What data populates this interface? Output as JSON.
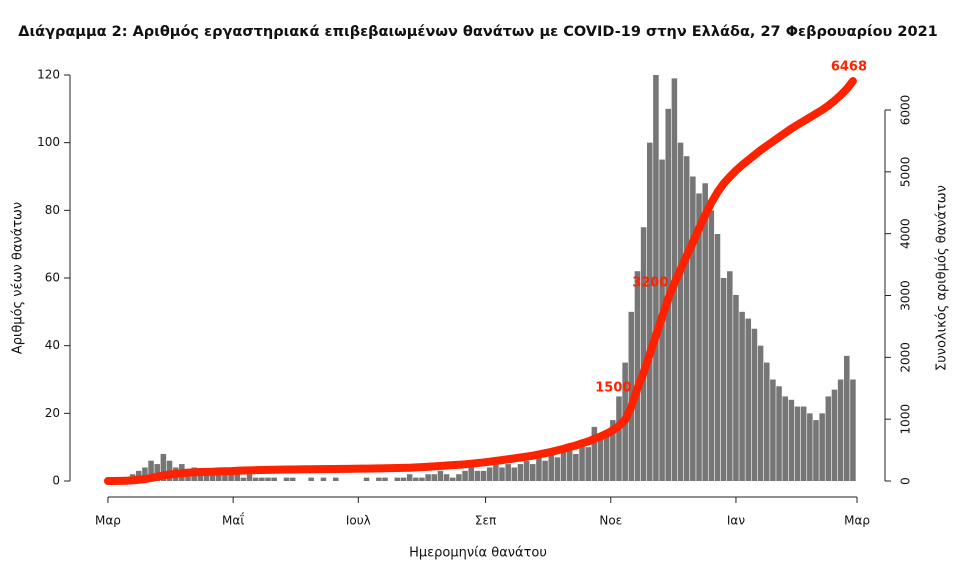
{
  "chart_data": {
    "type": "bar",
    "title": "Διάγραμμα 2: Αριθμός εργαστηριακά επιβεβαιωμένων θανάτων με COVID-19 στην Ελλάδα, 27 Φεβρουαρίου 2021",
    "x_label": "Ημερομηνία θανάτου",
    "y_label": "Αριθμός νέων θανάτων",
    "y2_label": "Συνολικός αριθμός θανάτων",
    "x": [
      0,
      3,
      6,
      9,
      12,
      15,
      18,
      21,
      24,
      27,
      30,
      33,
      36,
      39,
      42,
      45,
      48,
      51,
      54,
      57,
      60,
      63,
      66,
      69,
      72,
      75,
      78,
      81,
      84,
      87,
      90,
      93,
      96,
      99,
      102,
      105,
      108,
      111,
      114,
      117,
      120,
      123,
      126,
      129,
      132,
      135,
      138,
      141,
      144,
      147,
      150,
      153,
      156,
      159,
      162,
      165,
      168,
      171,
      174,
      177,
      180,
      183,
      186,
      189,
      192,
      195,
      198,
      201,
      204,
      207,
      210,
      213,
      216,
      219,
      222,
      225,
      228,
      231,
      234,
      237,
      240,
      243,
      246,
      249,
      252,
      255,
      258,
      261,
      264,
      267,
      270,
      273,
      276,
      279,
      282,
      285,
      288,
      291,
      294,
      297,
      300,
      303,
      306,
      309,
      312,
      315,
      318,
      321,
      324,
      327,
      330,
      333,
      336,
      339,
      342,
      345,
      348,
      351,
      354,
      357,
      360,
      363
    ],
    "xlim": [
      -3,
      368
    ],
    "xticks": [
      {
        "value": 0,
        "label": "Μαρ"
      },
      {
        "value": 61,
        "label": "Μαΐ"
      },
      {
        "value": 122,
        "label": "Ιουλ"
      },
      {
        "value": 184,
        "label": "Σεπ"
      },
      {
        "value": 245,
        "label": "Νοε"
      },
      {
        "value": 306,
        "label": "Ιαν"
      },
      {
        "value": 365,
        "label": "Μαρ"
      }
    ],
    "ylim": [
      0,
      120
    ],
    "yticks": [
      0,
      20,
      40,
      60,
      80,
      100,
      120
    ],
    "y2lim": [
      0,
      6566
    ],
    "y2ticks": [
      0,
      1000,
      2000,
      3000,
      4000,
      5000,
      6000
    ],
    "series": [
      {
        "type": "bar",
        "color": "#767676",
        "values": [
          0,
          0,
          0,
          1,
          2,
          3,
          4,
          6,
          5,
          8,
          6,
          4,
          5,
          3,
          4,
          2,
          3,
          2,
          2,
          2,
          2,
          2,
          1,
          2,
          1,
          1,
          1,
          1,
          0,
          1,
          1,
          0,
          0,
          1,
          0,
          1,
          0,
          1,
          0,
          0,
          0,
          0,
          1,
          0,
          1,
          1,
          0,
          1,
          1,
          2,
          1,
          1,
          2,
          2,
          3,
          2,
          1,
          2,
          3,
          4,
          3,
          3,
          4,
          5,
          4,
          5,
          4,
          5,
          6,
          5,
          7,
          6,
          8,
          7,
          9,
          10,
          8,
          12,
          10,
          16,
          14,
          15,
          18,
          25,
          35,
          50,
          62,
          75,
          100,
          120,
          95,
          110,
          119,
          100,
          96,
          90,
          85,
          88,
          80,
          73,
          60,
          62,
          55,
          50,
          48,
          45,
          40,
          35,
          30,
          28,
          25,
          24,
          22,
          22,
          20,
          18,
          20,
          25,
          27,
          30,
          37,
          30
        ]
      },
      {
        "type": "line",
        "axis": "y2",
        "color": "#ff2200",
        "values": [
          0,
          0,
          2,
          5,
          10,
          20,
          30,
          50,
          70,
          90,
          105,
          115,
          125,
          135,
          140,
          145,
          148,
          150,
          155,
          158,
          160,
          165,
          170,
          172,
          175,
          178,
          180,
          182,
          183,
          185,
          186,
          188,
          190,
          191,
          192,
          193,
          194,
          195,
          196,
          197,
          198,
          200,
          201,
          202,
          204,
          206,
          208,
          210,
          212,
          215,
          220,
          225,
          230,
          236,
          242,
          250,
          256,
          262,
          270,
          280,
          290,
          300,
          312,
          325,
          338,
          352,
          366,
          380,
          395,
          410,
          430,
          450,
          470,
          495,
          520,
          550,
          575,
          610,
          640,
          680,
          720,
          765,
          820,
          890,
          990,
          1200,
          1500,
          1750,
          2050,
          2350,
          2650,
          2950,
          3200,
          3420,
          3640,
          3860,
          4080,
          4300,
          4500,
          4670,
          4810,
          4920,
          5020,
          5110,
          5190,
          5270,
          5350,
          5420,
          5490,
          5560,
          5630,
          5700,
          5760,
          5820,
          5880,
          5940,
          6000,
          6070,
          6150,
          6240,
          6340,
          6468
        ],
        "value_labels": [
          null,
          null,
          null,
          null,
          null,
          null,
          null,
          null,
          null,
          null,
          null,
          null,
          null,
          null,
          null,
          null,
          null,
          null,
          null,
          null,
          null,
          null,
          null,
          null,
          null,
          null,
          null,
          null,
          null,
          null,
          null,
          null,
          null,
          null,
          null,
          null,
          null,
          null,
          null,
          null,
          null,
          null,
          null,
          null,
          null,
          null,
          null,
          null,
          null,
          null,
          null,
          null,
          null,
          null,
          null,
          null,
          null,
          null,
          null,
          null,
          null,
          null,
          null,
          null,
          null,
          null,
          null,
          null,
          null,
          null,
          null,
          null,
          null,
          null,
          null,
          null,
          null,
          null,
          null,
          null,
          null,
          null,
          null,
          null,
          null,
          null,
          "1500",
          null,
          null,
          null,
          null,
          null,
          "3200",
          null,
          null,
          null,
          null,
          null,
          null,
          null,
          null,
          null,
          null,
          null,
          null,
          null,
          null,
          null,
          null,
          null,
          null,
          null,
          null,
          null,
          null,
          null,
          null,
          null,
          null,
          null,
          null,
          "6468"
        ]
      }
    ]
  }
}
